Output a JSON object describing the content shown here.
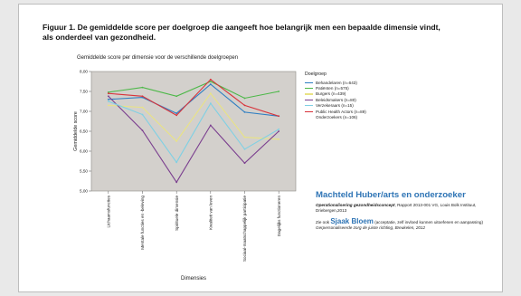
{
  "slide": {
    "title_line1": "Figuur 1. De gemiddelde score per doelgroep die aangeeft hoe belangrijk men een bepaalde dimensie vindt,",
    "title_line2": "als onderdeel van gezondheid."
  },
  "chart_data": {
    "type": "line",
    "title": "Gemiddelde score per dimensie voor de verschillende doelgroepen",
    "xlabel": "Dimensies",
    "ylabel": "Gemiddelde score",
    "ylim": [
      5.0,
      8.0
    ],
    "yticks": [
      "8,00",
      "7,50",
      "7,00",
      "6,50",
      "6,00",
      "5,50",
      "5,00"
    ],
    "categories": [
      "Lichaamsfuncties",
      "Mentale functies en -beleving",
      "Spirituele dimensie",
      "Kwaliteit van leven",
      "Sociaal-maatschappelijk participatie",
      "Dagelijks functioneren"
    ],
    "legend_title": "Doelgroep",
    "background": "#d3d0cc",
    "series": [
      {
        "name": "Behandelaren (n=643)",
        "color": "#2e7ec2",
        "values": [
          7.3,
          7.35,
          6.95,
          7.68,
          6.98,
          6.88
        ]
      },
      {
        "name": "Patiënten (n=575)",
        "color": "#4cb848",
        "values": [
          7.48,
          7.6,
          7.38,
          7.75,
          7.33,
          7.5
        ]
      },
      {
        "name": "Burgers (n=439)",
        "color": "#e9e384",
        "values": [
          7.15,
          7.1,
          6.25,
          7.45,
          6.35,
          6.3
        ]
      },
      {
        "name": "Beleidsmakers (n=80)",
        "color": "#7b3f8f",
        "values": [
          7.38,
          6.52,
          5.22,
          6.65,
          5.7,
          6.5
        ]
      },
      {
        "name": "Verzekeraars (n=15)",
        "color": "#7fd0e4",
        "values": [
          7.25,
          6.92,
          5.72,
          7.2,
          6.05,
          6.55
        ]
      },
      {
        "name": "Public Health Actors (n=89)",
        "color": "#d8323a",
        "values": [
          7.45,
          7.38,
          6.9,
          7.8,
          7.15,
          6.88
        ]
      }
    ],
    "extra_legend": "Onderzoekers (n=106)"
  },
  "author": {
    "name": "Machteld Huber/arts en onderzoeker",
    "ref1_title": "Operationalisering gezondheidsconcept",
    "ref1_rest": ", Rapport 2013-001 VG, Louis Bolk Instituut, Driebergen,2013",
    "ref2_prefix": "Zie ook ",
    "ref2_name": "Sjaak Bloem",
    "ref2_rest": " (acceptatie, zelf invloed kunnen uitoefenen en aanpassing)",
    "ref3": "Gerpersonaliseerde zorg de juiste richting, Breukelen, 2012"
  }
}
